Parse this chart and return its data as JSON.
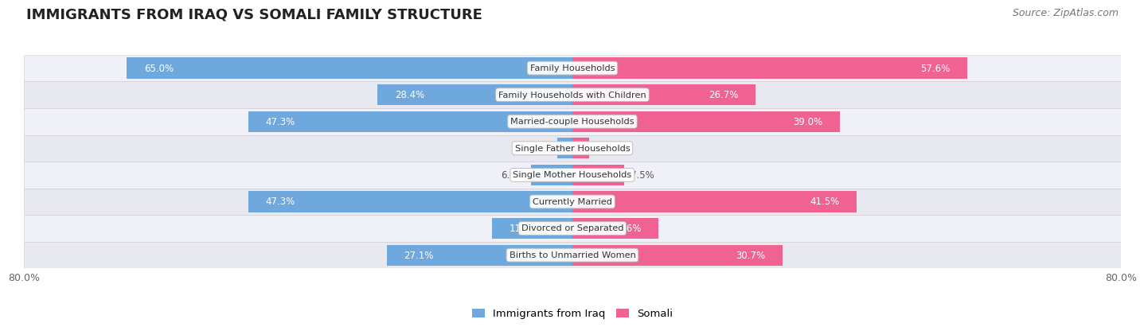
{
  "title": "IMMIGRANTS FROM IRAQ VS SOMALI FAMILY STRUCTURE",
  "source": "Source: ZipAtlas.com",
  "categories": [
    "Family Households",
    "Family Households with Children",
    "Married-couple Households",
    "Single Father Households",
    "Single Mother Households",
    "Currently Married",
    "Divorced or Separated",
    "Births to Unmarried Women"
  ],
  "iraq_values": [
    65.0,
    28.4,
    47.3,
    2.2,
    6.0,
    47.3,
    11.7,
    27.1
  ],
  "somali_values": [
    57.6,
    26.7,
    39.0,
    2.5,
    7.5,
    41.5,
    12.6,
    30.7
  ],
  "iraq_color": "#6fa8dc",
  "somali_color": "#f06292",
  "iraq_label": "Immigrants from Iraq",
  "somali_label": "Somali",
  "x_min": -80.0,
  "x_max": 80.0,
  "bar_height": 0.78,
  "label_fontsize": 8.5,
  "title_fontsize": 13,
  "source_fontsize": 9,
  "bg_color": "#ffffff",
  "row_colors": [
    "#f0f0f8",
    "#e8e8f0"
  ]
}
